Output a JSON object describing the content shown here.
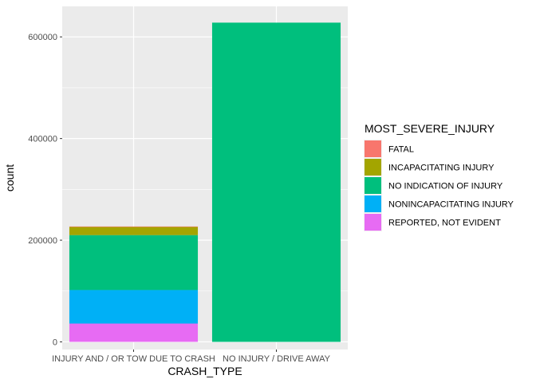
{
  "chart_data": {
    "type": "bar",
    "stacked": true,
    "title": "",
    "xlabel": "CRASH_TYPE",
    "ylabel": "count",
    "ylim": [
      -15000,
      660000
    ],
    "yticks": [
      0,
      200000,
      400000,
      600000
    ],
    "ytick_labels": [
      "0",
      "200000",
      "400000",
      "600000"
    ],
    "categories": [
      "INJURY AND / OR TOW DUE TO CRASH",
      "NO INJURY / DRIVE AWAY"
    ],
    "legend_title": "MOST_SEVERE_INJURY",
    "legend_position": "right",
    "series": [
      {
        "name": "FATAL",
        "color": "#F8766D",
        "values": [
          1000,
          0
        ]
      },
      {
        "name": "INCAPACITATING INJURY",
        "color": "#A3A500",
        "values": [
          16000,
          0
        ]
      },
      {
        "name": "NO INDICATION OF INJURY",
        "color": "#00BF7D",
        "values": [
          108000,
          628000
        ]
      },
      {
        "name": "NONINCAPACITATING INJURY",
        "color": "#00B0F6",
        "values": [
          66000,
          0
        ]
      },
      {
        "name": "REPORTED, NOT EVIDENT",
        "color": "#E76BF3",
        "values": [
          36000,
          0
        ]
      }
    ]
  }
}
